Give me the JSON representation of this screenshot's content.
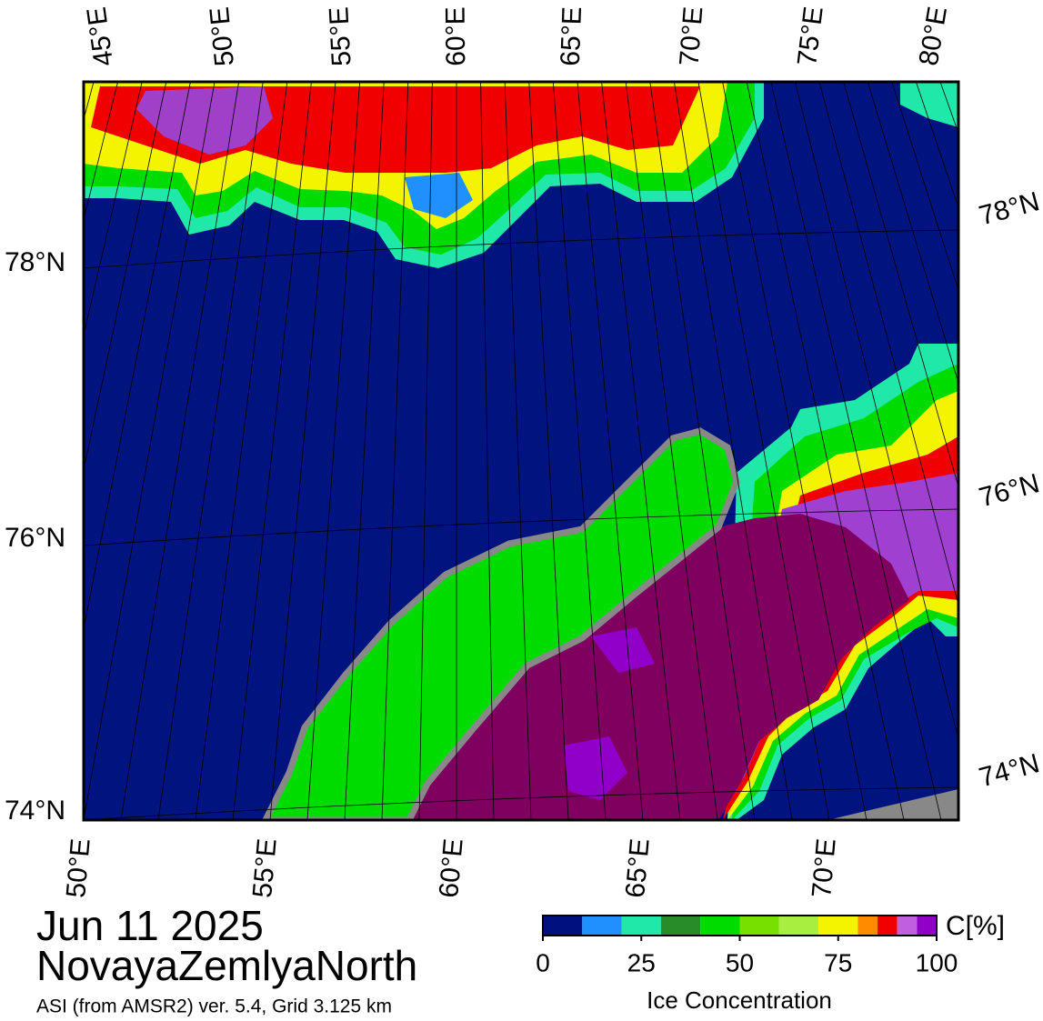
{
  "map": {
    "top_lon_labels": [
      "45°E",
      "50°E",
      "55°E",
      "60°E",
      "65°E",
      "70°E",
      "75°E",
      "80°E"
    ],
    "bottom_lon_labels": [
      "50°E",
      "55°E",
      "60°E",
      "65°E",
      "70°E"
    ],
    "left_lat_labels": [
      "78°N",
      "76°N",
      "74°N"
    ],
    "right_lat_labels": [
      "78°N",
      "76°N",
      "74°N"
    ]
  },
  "date": "Jun 11 2025",
  "region": "NovayaZemlyaNorth",
  "subtitle": "ASI (from AMSR2) ver. 5.4,  Grid 3.125 km",
  "colorbar": {
    "unit": "C[%]",
    "label": "Ice Concentration",
    "lim": [
      0,
      100
    ],
    "ticks": [
      0,
      25,
      50,
      75,
      100
    ],
    "bounds": [
      0,
      10,
      20,
      30,
      40,
      50,
      60,
      70,
      80,
      85,
      90,
      95,
      100
    ],
    "colors": [
      "#00107f",
      "#2090ff",
      "#20e8a8",
      "#288c28",
      "#00dc00",
      "#78e000",
      "#a8ee40",
      "#f4f400",
      "#ff8c00",
      "#f00000",
      "#c060e0",
      "#9000c8"
    ]
  }
}
